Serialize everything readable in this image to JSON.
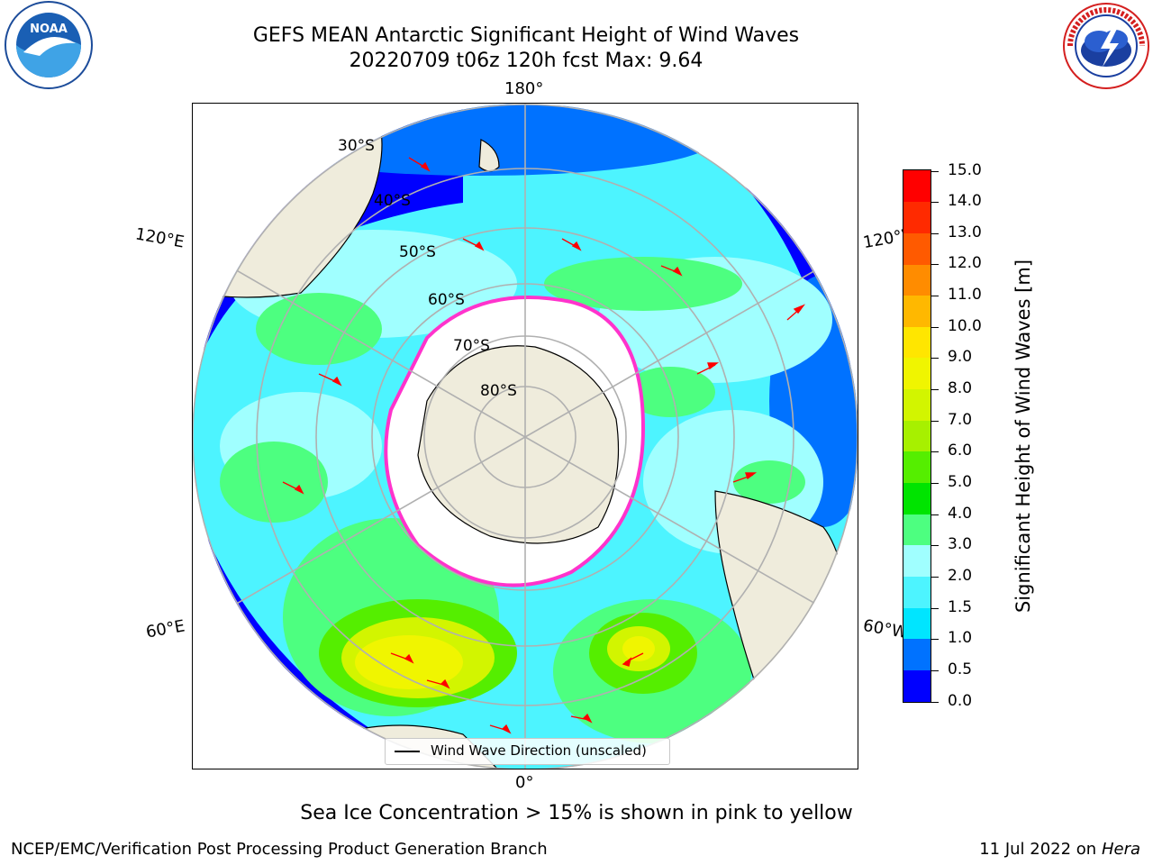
{
  "header": {
    "title_line1": "GEFS MEAN Antarctic Significant Height of Wind Waves",
    "title_line2": "20220709 t06z 120h fcst   Max: 9.64"
  },
  "logos": {
    "left": {
      "name": "noaa-logo",
      "text": "NOAA",
      "ring_text": "NATIONAL OCEANIC AND ATMOSPHERIC ADMINISTRATION · U.S. DEPARTMENT OF COMMERCE"
    },
    "right": {
      "name": "nws-logo",
      "ring_text": "NATIONAL WEATHER SERVICE"
    }
  },
  "map": {
    "projection": "south-polar-stereographic",
    "longitude_labels": {
      "top": "180°",
      "left_upper": "120°E",
      "right_upper": "120°W",
      "left_lower": "60°E",
      "right_lower": "60°W",
      "bottom": "0°"
    },
    "latitude_labels": [
      "30°S",
      "40°S",
      "50°S",
      "60°S",
      "70°S",
      "80°S"
    ],
    "legend_label": "Wind Wave Direction (unscaled)",
    "colors": {
      "land": "#efecdc",
      "ice_edge": "#ff33cc",
      "arrow": "#ff0000",
      "grid": "#b0b0b0"
    }
  },
  "colorbar": {
    "title": "Significant Height of Wind Waves [m]",
    "tick_labels": [
      "0.0",
      "0.5",
      "1.0",
      "1.5",
      "2.0",
      "3.0",
      "4.0",
      "5.0",
      "6.0",
      "7.0",
      "8.0",
      "9.0",
      "10.0",
      "11.0",
      "12.0",
      "13.0",
      "14.0",
      "15.0"
    ],
    "colors": [
      "#0000ff",
      "#0072ff",
      "#00e5ff",
      "#4df4ff",
      "#a0ffff",
      "#4dff80",
      "#00e400",
      "#55ee00",
      "#a7f000",
      "#d2f500",
      "#f0f500",
      "#ffe600",
      "#ffb800",
      "#ff8c00",
      "#ff5a00",
      "#ff2a00",
      "#ff0000"
    ]
  },
  "note": "Sea Ice Concentration > 15% is shown in pink to yellow",
  "footer": {
    "left": "NCEP/EMC/Verification Post Processing Product Generation Branch",
    "right_prefix": "11 Jul 2022 on ",
    "right_host": "Hera"
  }
}
